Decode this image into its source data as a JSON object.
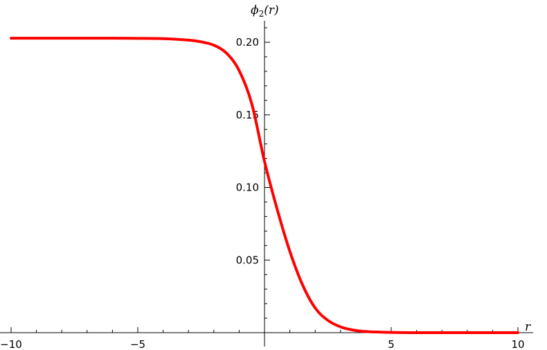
{
  "chart_data": {
    "type": "line",
    "title": "",
    "xlabel": "r",
    "ylabel_parts": {
      "main": "ϕ",
      "sub": "2",
      "arg": "(r)"
    },
    "xlim": [
      -10,
      10
    ],
    "ylim": [
      0,
      0.215
    ],
    "x_major_ticks": [
      {
        "value": -10,
        "label": "−10"
      },
      {
        "value": -5,
        "label": "−5"
      },
      {
        "value": 5,
        "label": "5"
      },
      {
        "value": 10,
        "label": "10"
      }
    ],
    "x_minor_step": 1,
    "y_major_ticks": [
      {
        "value": 0.05,
        "label": "0.05"
      },
      {
        "value": 0.1,
        "label": "0.10"
      },
      {
        "value": 0.15,
        "label": "0.15"
      },
      {
        "value": 0.2,
        "label": "0.20"
      }
    ],
    "y_minor_step": 0.01,
    "grid": false,
    "legend": false,
    "series": [
      {
        "color": "#ff0000",
        "x": [
          -10,
          -8,
          -6,
          -5,
          -4,
          -3,
          -2.5,
          -2,
          -1.5,
          -1,
          -0.5,
          0,
          0.5,
          1,
          1.5,
          2,
          2.5,
          3,
          3.5,
          4,
          5,
          6,
          8,
          10
        ],
        "y": [
          0.2028,
          0.2028,
          0.2028,
          0.2027,
          0.2025,
          0.2015,
          0.2003,
          0.198,
          0.1925,
          0.1805,
          0.1575,
          0.118,
          0.085,
          0.056,
          0.033,
          0.017,
          0.0085,
          0.004,
          0.0018,
          0.0008,
          0.0002,
          0.0,
          0.0,
          0.0
        ]
      }
    ]
  }
}
